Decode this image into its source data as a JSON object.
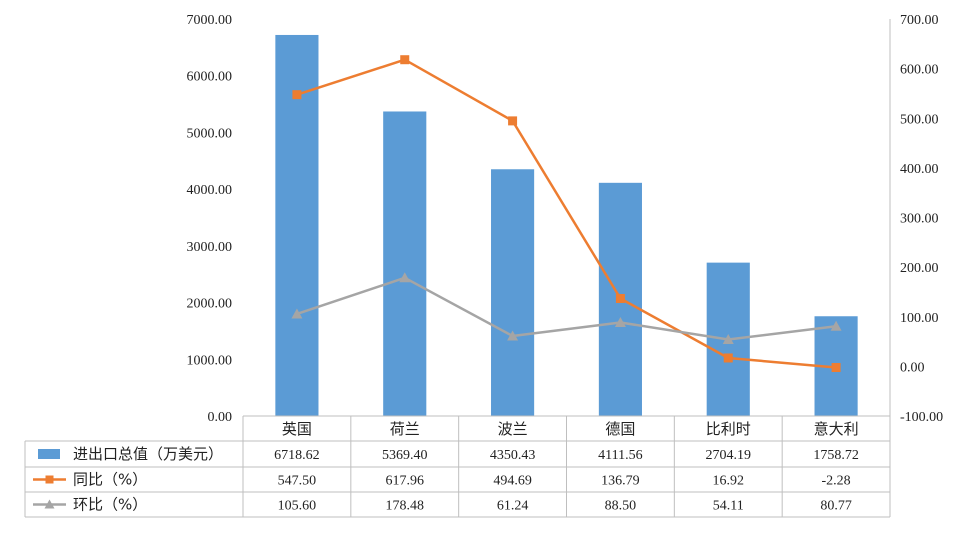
{
  "chart_data": {
    "type": "bar",
    "categories": [
      "英国",
      "荷兰",
      "波兰",
      "德国",
      "比利时",
      "意大利"
    ],
    "y_left": {
      "ticks": [
        "0.00",
        "1000.00",
        "2000.00",
        "3000.00",
        "4000.00",
        "5000.00",
        "6000.00",
        "7000.00"
      ],
      "ylim": [
        0,
        7000
      ]
    },
    "y_right": {
      "ticks": [
        "-100.00",
        "0.00",
        "100.00",
        "200.00",
        "300.00",
        "400.00",
        "500.00",
        "600.00",
        "700.00"
      ],
      "ylim": [
        -100,
        700
      ]
    },
    "grid": false,
    "legend": "data-table",
    "series": [
      {
        "name": "进出口总值（万美元）",
        "type": "bar",
        "axis": "left",
        "color": "#5b9bd5",
        "values": [
          6718.62,
          5369.4,
          4350.43,
          4111.56,
          2704.19,
          1758.72
        ],
        "labels": [
          "6718.62",
          "5369.40",
          "4350.43",
          "4111.56",
          "2704.19",
          "1758.72"
        ]
      },
      {
        "name": "同比（%）",
        "type": "line",
        "axis": "right",
        "marker": "square",
        "color": "#ed7d31",
        "values": [
          547.5,
          617.96,
          494.69,
          136.79,
          16.92,
          -2.28
        ],
        "labels": [
          "547.50",
          "617.96",
          "494.69",
          "136.79",
          "16.92",
          "-2.28"
        ]
      },
      {
        "name": "环比（%）",
        "type": "line",
        "axis": "right",
        "marker": "triangle",
        "color": "#a5a5a5",
        "values": [
          105.6,
          178.48,
          61.24,
          88.5,
          54.11,
          80.77
        ],
        "labels": [
          "105.60",
          "178.48",
          "61.24",
          "88.50",
          "54.11",
          "80.77"
        ]
      }
    ]
  }
}
